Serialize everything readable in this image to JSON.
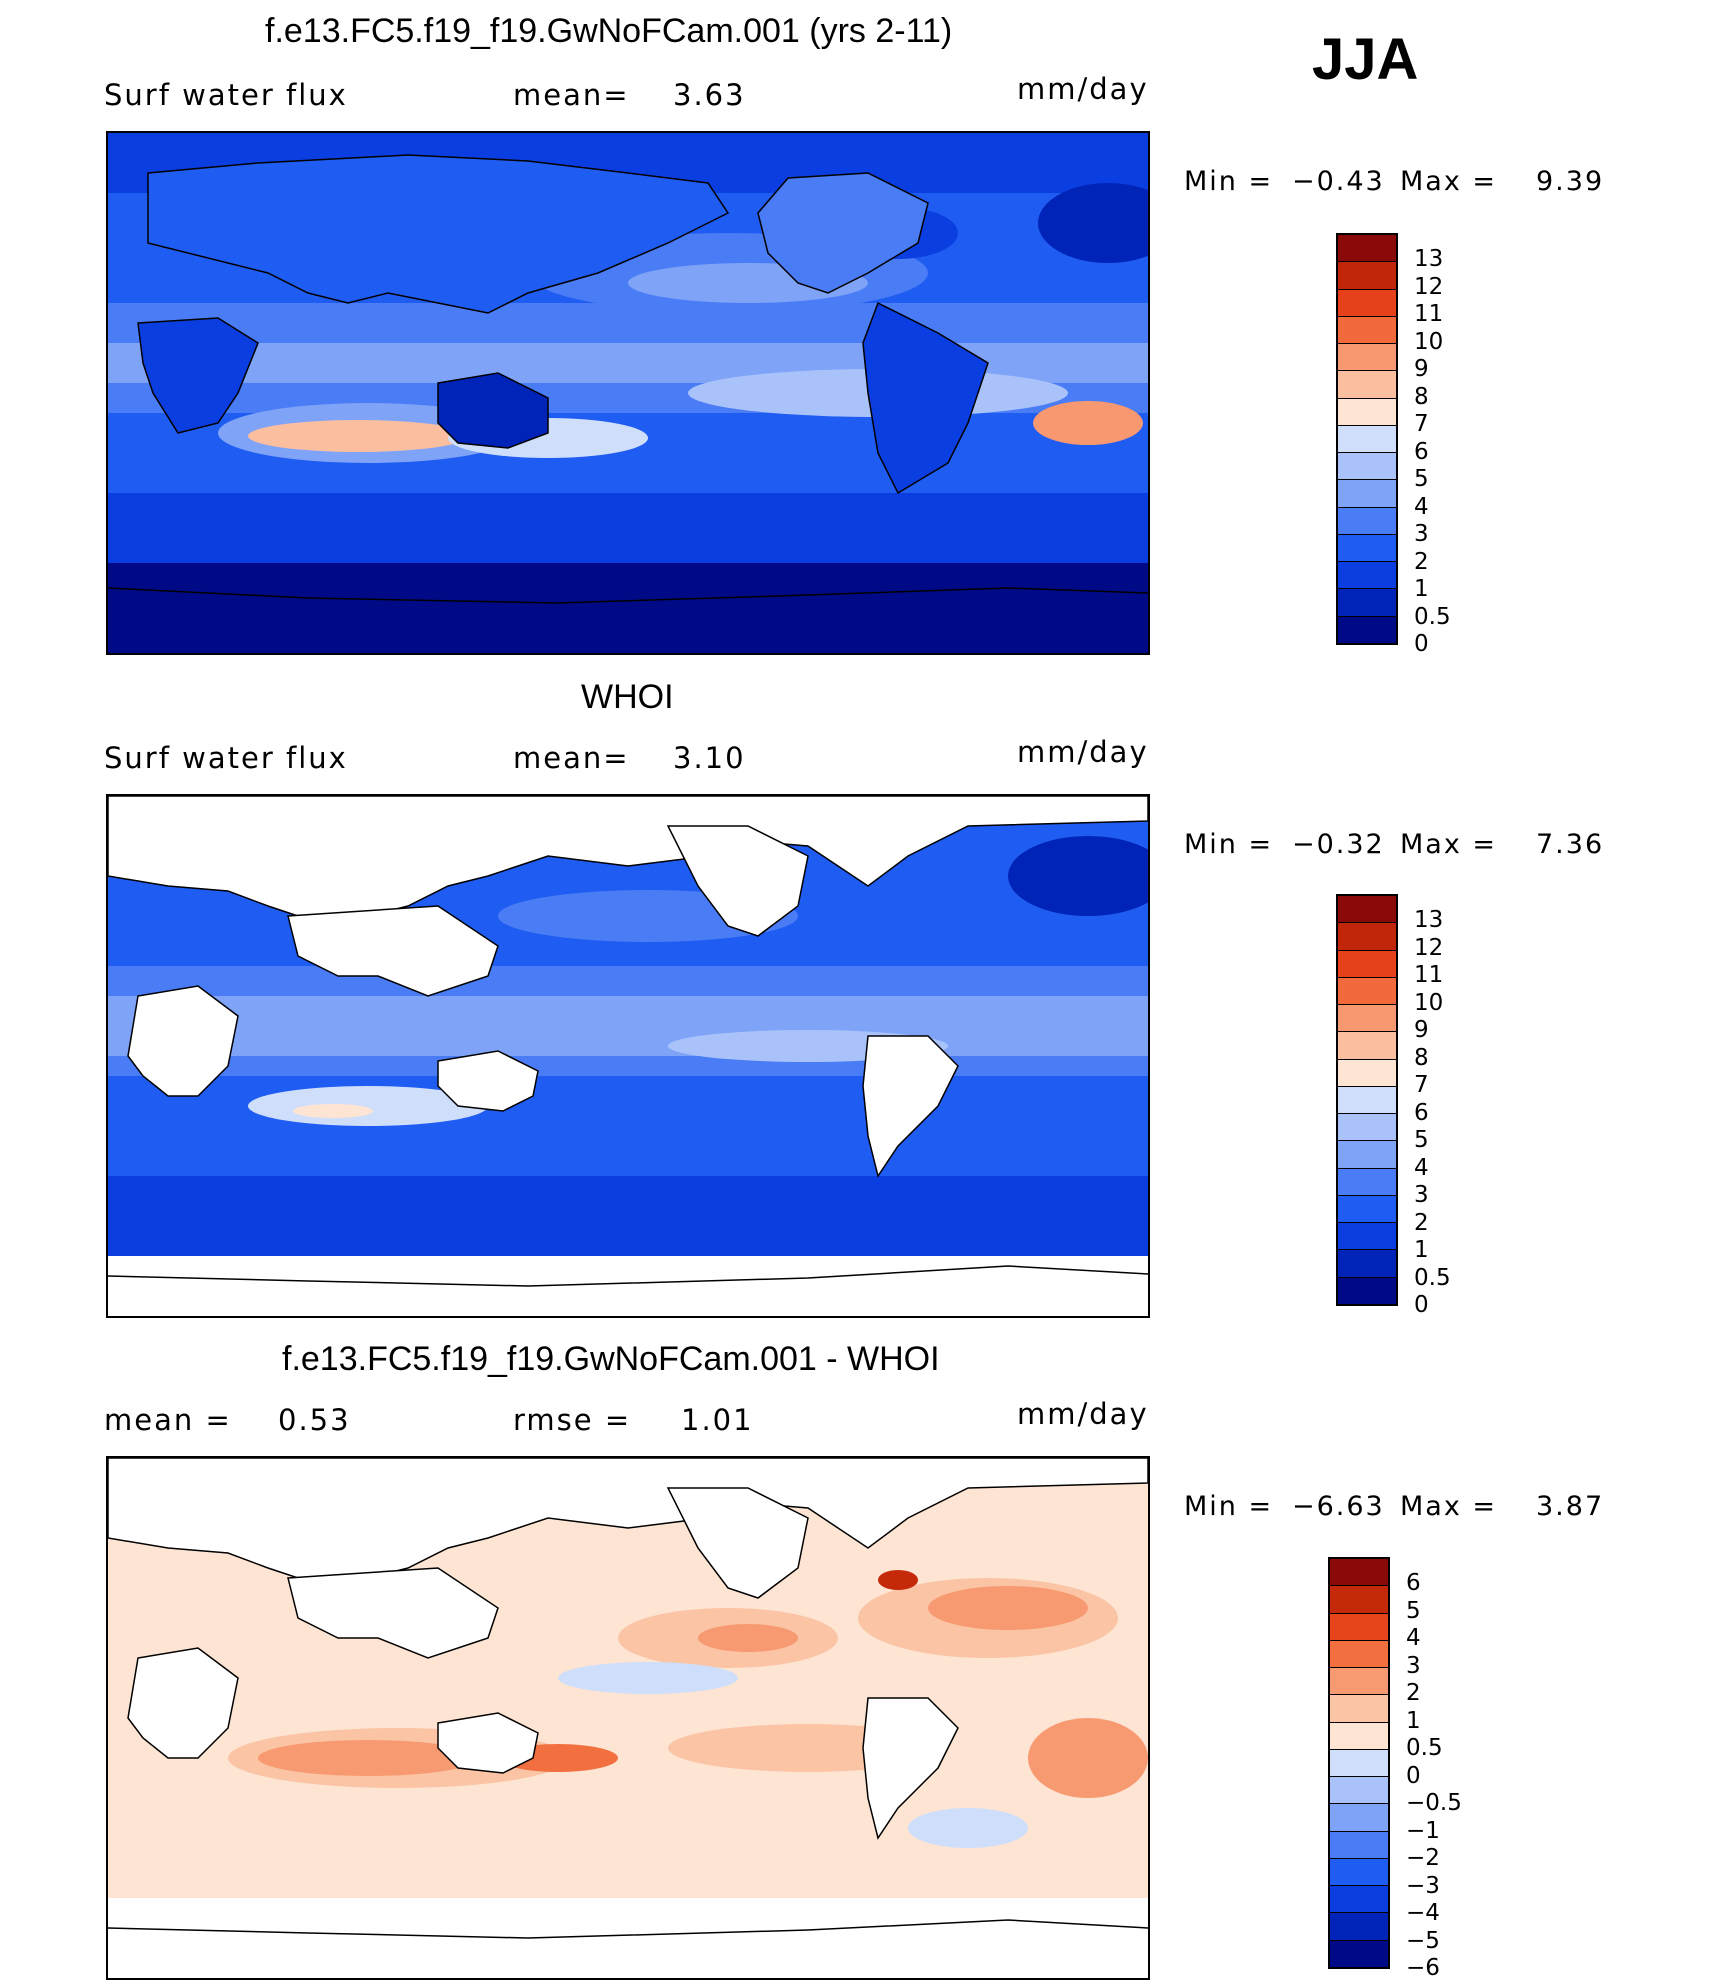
{
  "season": "JJA",
  "colors": {
    "abs_scale": [
      "#000a87",
      "#0024b8",
      "#0a3ee0",
      "#1f5cf2",
      "#4a7cf5",
      "#7ea3f7",
      "#a9c2fa",
      "#cfdefb",
      "#fde4d3",
      "#fbbfa0",
      "#f79870",
      "#f26a3c",
      "#e6411a",
      "#c2260a",
      "#8a0a0a"
    ],
    "diff_scale": [
      "#000a87",
      "#0024b8",
      "#0a3ee0",
      "#1f5cf2",
      "#4a7cf5",
      "#7ea3f7",
      "#a9c2fa",
      "#cfdefb",
      "#fde4d3",
      "#fbc4a4",
      "#f79a72",
      "#f27040",
      "#e6451c",
      "#c4290a",
      "#8a0a0a"
    ],
    "land": "#ffffff"
  },
  "panels": [
    {
      "id": "model",
      "title": "f.e13.FC5.f19_f19.GwNoFCam.001 (yrs 2-11)",
      "left_label": "Surf water flux",
      "stat_label": "mean=",
      "stat_value": "3.63",
      "units": "mm/day",
      "min_label": "Min =",
      "min_value": "−0.43",
      "max_label": "Max =",
      "max_value": "9.39",
      "colorbar_labels": [
        "13",
        "12",
        "11",
        "10",
        "9",
        "8",
        "7",
        "6",
        "5",
        "4",
        "3",
        "2",
        "1",
        "0.5",
        "0"
      ]
    },
    {
      "id": "obs",
      "title": "WHOI",
      "left_label": "Surf water flux",
      "stat_label": "mean=",
      "stat_value": "3.10",
      "units": "mm/day",
      "min_label": "Min =",
      "min_value": "−0.32",
      "max_label": "Max =",
      "max_value": "7.36",
      "colorbar_labels": [
        "13",
        "12",
        "11",
        "10",
        "9",
        "8",
        "7",
        "6",
        "5",
        "4",
        "3",
        "2",
        "1",
        "0.5",
        "0"
      ]
    },
    {
      "id": "diff",
      "title": "f.e13.FC5.f19_f19.GwNoFCam.001 - WHOI",
      "left_label": "mean =",
      "left_value": "0.53",
      "stat_label": "rmse =",
      "stat_value": "1.01",
      "units": "mm/day",
      "min_label": "Min =",
      "min_value": "−6.63",
      "max_label": "Max =",
      "max_value": "3.87",
      "colorbar_labels": [
        "6",
        "5",
        "4",
        "3",
        "2",
        "1",
        "0.5",
        "0",
        "−0.5",
        "−1",
        "−2",
        "−3",
        "−4",
        "−5",
        "−6"
      ]
    }
  ]
}
